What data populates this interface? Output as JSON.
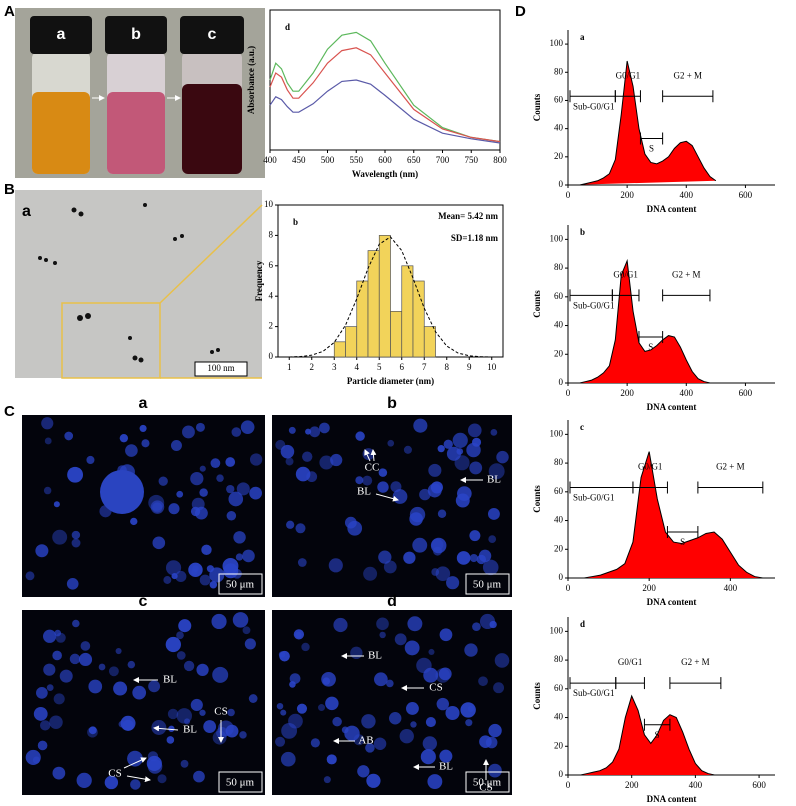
{
  "figure": {
    "panel_labels": [
      "A",
      "B",
      "C",
      "D"
    ],
    "vials": [
      "a",
      "b",
      "c"
    ],
    "tem": {
      "label": "a",
      "scale": "100 nm"
    },
    "fluorescence": [
      {
        "label": "a",
        "scale": "50 μm"
      },
      {
        "label": "b",
        "scale": "50 μm",
        "annotations": [
          "CC",
          "BL",
          "BL"
        ]
      },
      {
        "label": "c",
        "scale": "50 μm",
        "annotations": [
          "BL",
          "BL",
          "CS",
          "CS"
        ]
      },
      {
        "label": "d",
        "scale": "50 μm",
        "annotations": [
          "BL",
          "CS",
          "AB",
          "BL",
          "CS"
        ]
      }
    ]
  },
  "chart_data": [
    {
      "type": "line",
      "panel_label": "d",
      "xlabel": "Wavelength (nm)",
      "ylabel": "Absorbance (a.u.)",
      "x": [
        400,
        410,
        420,
        430,
        440,
        450,
        475,
        500,
        525,
        550,
        575,
        600,
        650,
        700,
        750,
        800
      ],
      "series": [
        {
          "color": "#5cb85c",
          "values": [
            0.5,
            0.62,
            0.58,
            0.48,
            0.42,
            0.42,
            0.55,
            0.72,
            0.82,
            0.84,
            0.78,
            0.62,
            0.32,
            0.16,
            0.09,
            0.06
          ]
        },
        {
          "color": "#d9534f",
          "values": [
            0.45,
            0.55,
            0.52,
            0.43,
            0.37,
            0.37,
            0.48,
            0.62,
            0.71,
            0.73,
            0.68,
            0.55,
            0.29,
            0.15,
            0.09,
            0.06
          ]
        },
        {
          "color": "#5a5aa8",
          "values": [
            0.32,
            0.38,
            0.36,
            0.31,
            0.27,
            0.27,
            0.33,
            0.42,
            0.49,
            0.5,
            0.47,
            0.39,
            0.22,
            0.12,
            0.08,
            0.05
          ]
        }
      ],
      "xlim": [
        400,
        800
      ],
      "xticks": [
        400,
        450,
        500,
        550,
        600,
        650,
        700,
        750,
        800
      ],
      "ylim": [
        0,
        1
      ]
    },
    {
      "type": "histogram",
      "panel_label": "b",
      "xlabel": "Particle diameter (nm)",
      "ylabel": "Frequency",
      "bins": [
        3,
        3.5,
        4,
        4.5,
        5,
        5.5,
        6,
        6.5,
        7,
        7.5
      ],
      "values": [
        1,
        2,
        5,
        7,
        8,
        3,
        6,
        5,
        2
      ],
      "color": "#f2d35a",
      "annotations": [
        "Mean= 5.42 nm",
        "SD=1.18 nm"
      ],
      "fit": {
        "x": [
          1,
          1.5,
          2,
          2.5,
          3,
          3.5,
          4,
          4.5,
          5,
          5.5,
          6,
          6.5,
          7,
          7.5,
          8,
          8.5,
          9,
          9.5,
          10
        ],
        "values": [
          0,
          0.03,
          0.12,
          0.37,
          0.96,
          2.09,
          3.83,
          5.83,
          7.42,
          7.9,
          7,
          5.19,
          3.21,
          1.66,
          0.72,
          0.26,
          0.08,
          0.02,
          0
        ]
      },
      "xlim": [
        0.5,
        10.5
      ],
      "xticks": [
        1,
        2,
        3,
        4,
        5,
        6,
        7,
        8,
        9,
        10
      ],
      "ylim": [
        0,
        10
      ],
      "yticks": [
        0,
        2,
        4,
        6,
        8,
        10
      ]
    },
    {
      "type": "area",
      "panel_label": "a",
      "xlabel": "DNA content",
      "ylabel": "Counts",
      "color": "#ff0000",
      "x": [
        0,
        20,
        40,
        60,
        80,
        100,
        120,
        140,
        160,
        180,
        200,
        220,
        240,
        260,
        280,
        300,
        320,
        340,
        360,
        380,
        400,
        420,
        440,
        460,
        480,
        500
      ],
      "values": [
        0,
        0,
        0,
        1,
        2,
        3,
        5,
        8,
        18,
        50,
        88,
        70,
        40,
        22,
        16,
        15,
        17,
        20,
        26,
        30,
        31,
        28,
        20,
        12,
        6,
        3
      ],
      "gates": [
        {
          "label": "Sub-G0/G1",
          "range": [
            0,
            160
          ],
          "level": 63
        },
        {
          "label": "G0/G1",
          "range": [
            160,
            245
          ],
          "level": 63
        },
        {
          "label": "S",
          "range": [
            245,
            320
          ],
          "level": 33
        },
        {
          "label": "G2 + M",
          "range": [
            320,
            490
          ],
          "level": 63
        }
      ],
      "xlim": [
        0,
        700
      ],
      "xticks": [
        0,
        200,
        400,
        600
      ],
      "ylim": [
        0,
        110
      ],
      "yticks": [
        0,
        20,
        40,
        60,
        80,
        100
      ]
    },
    {
      "type": "area",
      "panel_label": "b",
      "xlabel": "DNA content",
      "ylabel": "Counts",
      "color": "#ff0000",
      "x": [
        0,
        20,
        40,
        60,
        80,
        100,
        120,
        140,
        160,
        180,
        200,
        220,
        240,
        260,
        280,
        300,
        320,
        340,
        360,
        380,
        400,
        420,
        440,
        460,
        480,
        500
      ],
      "values": [
        0,
        0,
        0,
        1,
        2,
        4,
        7,
        12,
        30,
        75,
        85,
        50,
        28,
        22,
        23,
        26,
        30,
        33,
        32,
        25,
        16,
        8,
        3,
        1,
        0,
        0
      ],
      "gates": [
        {
          "label": "Sub-G0/G1",
          "range": [
            0,
            150
          ],
          "level": 61
        },
        {
          "label": "G0/G1",
          "range": [
            150,
            240
          ],
          "level": 61
        },
        {
          "label": "S",
          "range": [
            240,
            320
          ],
          "level": 32
        },
        {
          "label": "G2 + M",
          "range": [
            320,
            480
          ],
          "level": 61
        }
      ],
      "xlim": [
        0,
        700
      ],
      "xticks": [
        0,
        200,
        400,
        600
      ],
      "ylim": [
        0,
        110
      ],
      "yticks": [
        0,
        20,
        40,
        60,
        80,
        100
      ]
    },
    {
      "type": "area",
      "panel_label": "c",
      "xlabel": "DNA content",
      "ylabel": "Counts",
      "color": "#ff0000",
      "x": [
        0,
        20,
        40,
        60,
        80,
        100,
        120,
        140,
        160,
        180,
        200,
        220,
        240,
        260,
        280,
        300,
        320,
        340,
        360,
        380,
        400,
        420,
        440,
        460,
        480,
        500
      ],
      "values": [
        0,
        0,
        0,
        1,
        2,
        4,
        6,
        10,
        25,
        70,
        88,
        55,
        32,
        25,
        24,
        26,
        28,
        31,
        32,
        27,
        18,
        9,
        4,
        1,
        0,
        0
      ],
      "gates": [
        {
          "label": "Sub-G0/G1",
          "range": [
            0,
            160
          ],
          "level": 63
        },
        {
          "label": "G0/G1",
          "range": [
            160,
            245
          ],
          "level": 63
        },
        {
          "label": "S",
          "range": [
            245,
            320
          ],
          "level": 32
        },
        {
          "label": "G2 + M",
          "range": [
            320,
            480
          ],
          "level": 63
        }
      ],
      "xlim": [
        0,
        510
      ],
      "xticks": [
        0,
        200,
        400
      ],
      "ylim": [
        0,
        110
      ],
      "yticks": [
        0,
        20,
        40,
        60,
        80,
        100
      ]
    },
    {
      "type": "area",
      "panel_label": "d",
      "xlabel": "DNA content",
      "ylabel": "Counts",
      "color": "#ff0000",
      "x": [
        0,
        20,
        40,
        60,
        80,
        100,
        120,
        140,
        160,
        180,
        200,
        220,
        240,
        260,
        280,
        300,
        320,
        340,
        360,
        380,
        400,
        420,
        440,
        460,
        480,
        500
      ],
      "values": [
        0,
        0,
        0,
        1,
        2,
        3,
        5,
        9,
        18,
        40,
        55,
        45,
        28,
        22,
        28,
        38,
        42,
        40,
        30,
        18,
        8,
        3,
        1,
        0,
        0,
        0
      ],
      "gates": [
        {
          "label": "Sub-G0/G1",
          "range": [
            0,
            150
          ],
          "level": 64
        },
        {
          "label": "G0/G1",
          "range": [
            150,
            240
          ],
          "level": 64
        },
        {
          "label": "S",
          "range": [
            240,
            320
          ],
          "level": 35
        },
        {
          "label": "G2 + M",
          "range": [
            320,
            480
          ],
          "level": 64
        }
      ],
      "xlim": [
        0,
        650
      ],
      "xticks": [
        0,
        200,
        400,
        600
      ],
      "ylim": [
        0,
        110
      ],
      "yticks": [
        0,
        20,
        40,
        60,
        80,
        100
      ]
    }
  ]
}
